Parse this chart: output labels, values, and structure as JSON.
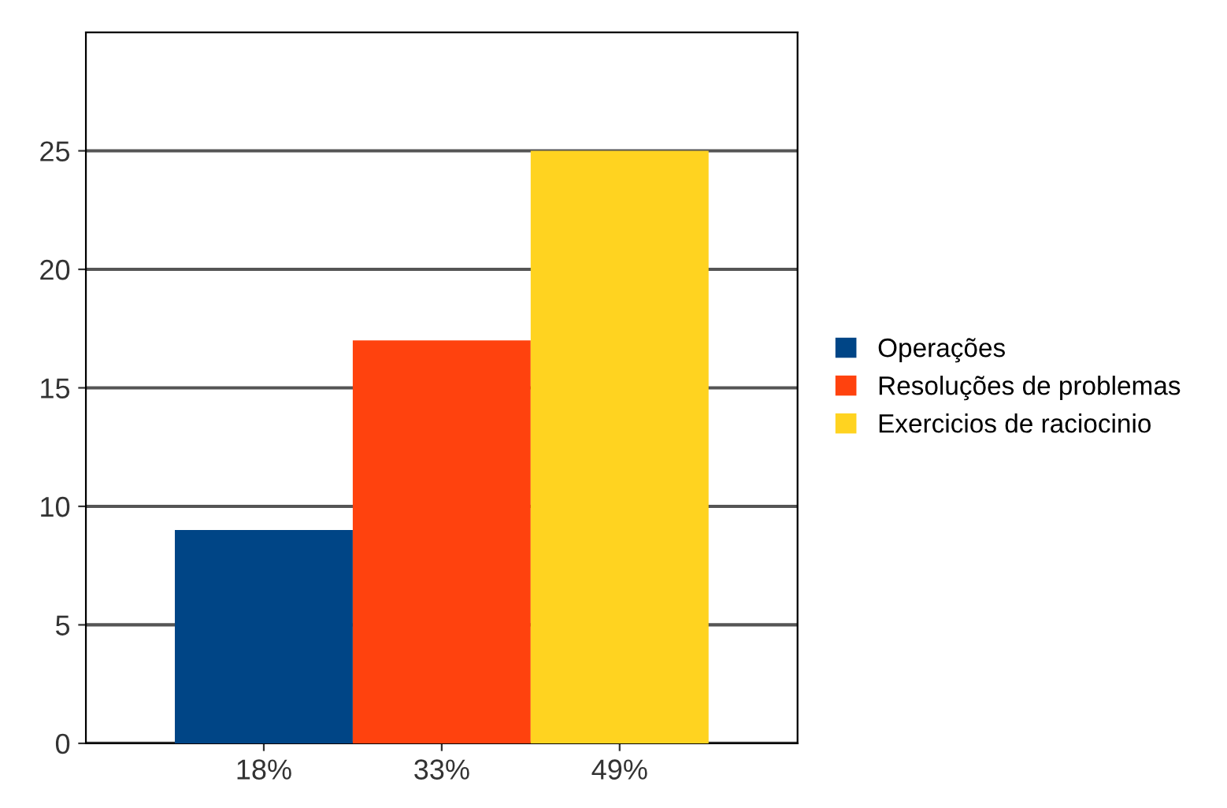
{
  "chart_data": {
    "type": "bar",
    "categories": [
      "18%",
      "33%",
      "49%"
    ],
    "series": [
      {
        "name": "Operações",
        "color": "#004586",
        "values": [
          9,
          null,
          null
        ]
      },
      {
        "name": "Resoluções de problemas",
        "color": "#ff420e",
        "values": [
          null,
          17,
          null
        ]
      },
      {
        "name": "Exercicios de raciocinio",
        "color": "#ffd320",
        "values": [
          null,
          null,
          25
        ]
      }
    ],
    "ylim": [
      0,
      30
    ],
    "yticks": [
      0,
      5,
      10,
      15,
      20,
      25
    ],
    "grid": "y",
    "legend": "right"
  }
}
